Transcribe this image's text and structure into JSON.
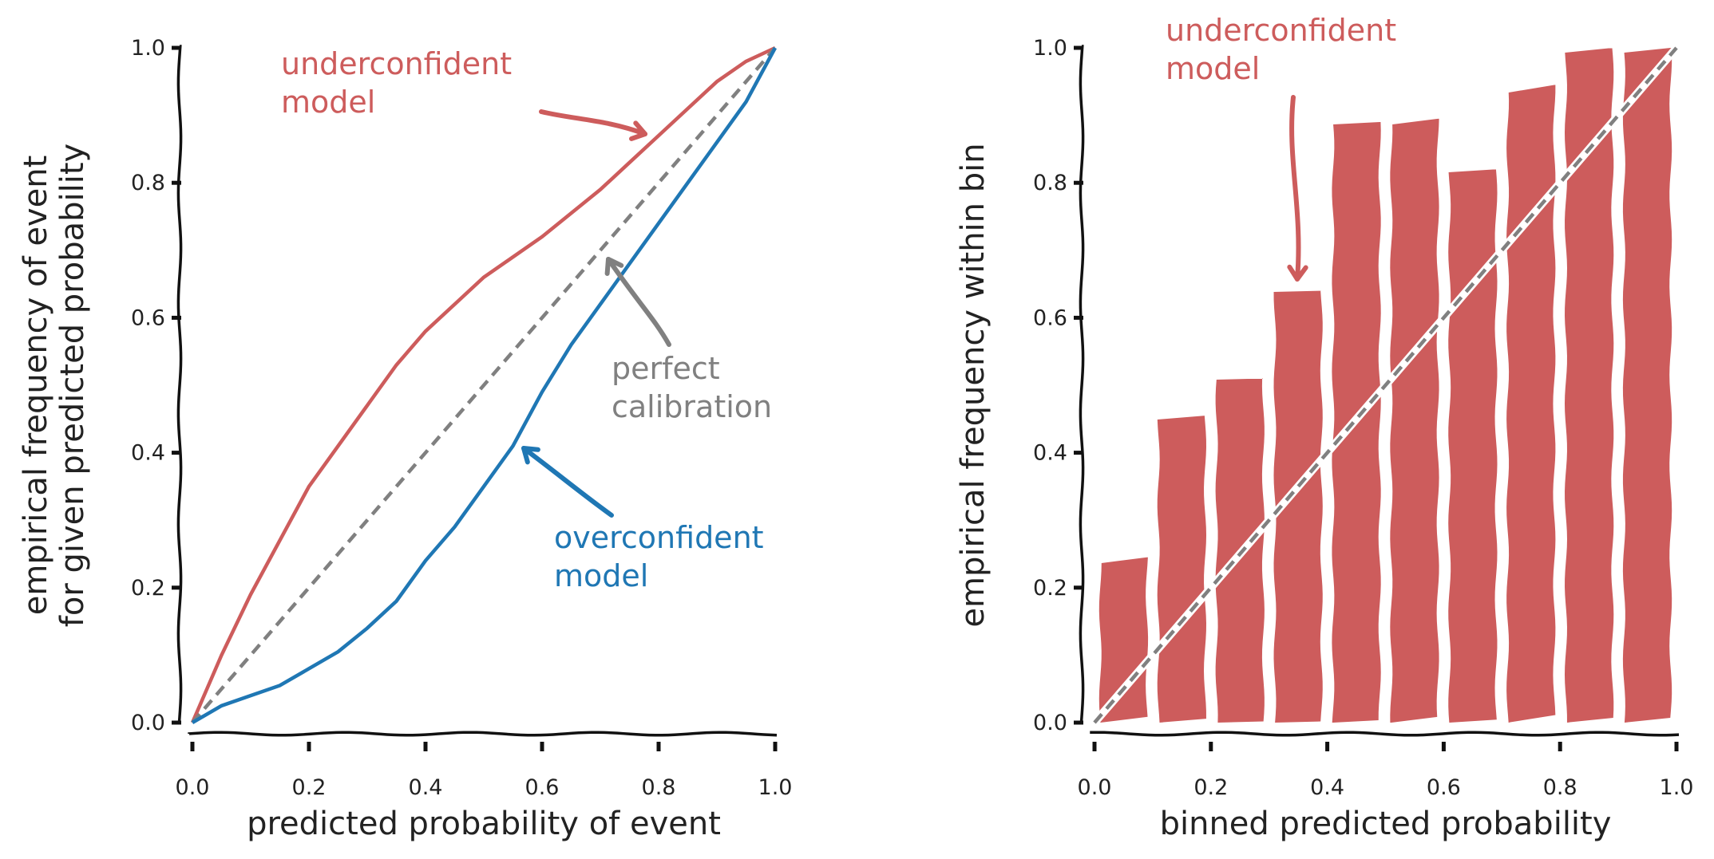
{
  "chart_data": [
    {
      "type": "line",
      "xlabel": "predicted probability of event",
      "ylabel": [
        "empirical frequency of event",
        "for given predicted probability"
      ],
      "xlim": [
        0,
        1
      ],
      "ylim": [
        0,
        1
      ],
      "xticks": [
        "0.0",
        "0.2",
        "0.4",
        "0.6",
        "0.8",
        "1.0"
      ],
      "yticks": [
        "0.0",
        "0.2",
        "0.4",
        "0.6",
        "0.8",
        "1.0"
      ],
      "grid": false,
      "series": [
        {
          "name": "underconfident model",
          "color": "#cd5c5c",
          "x": [
            0,
            0.05,
            0.1,
            0.15,
            0.2,
            0.25,
            0.3,
            0.35,
            0.4,
            0.45,
            0.5,
            0.55,
            0.6,
            0.65,
            0.7,
            0.75,
            0.8,
            0.85,
            0.9,
            0.95,
            1.0
          ],
          "y": [
            0,
            0.1,
            0.19,
            0.27,
            0.35,
            0.41,
            0.47,
            0.53,
            0.58,
            0.62,
            0.66,
            0.69,
            0.72,
            0.755,
            0.79,
            0.83,
            0.87,
            0.91,
            0.95,
            0.98,
            1.0
          ]
        },
        {
          "name": "perfect calibration",
          "color": "#808080",
          "dashed": true,
          "x": [
            0,
            1
          ],
          "y": [
            0,
            1
          ]
        },
        {
          "name": "overconfident model",
          "color": "#1f77b4",
          "x": [
            0,
            0.05,
            0.1,
            0.15,
            0.2,
            0.25,
            0.3,
            0.35,
            0.4,
            0.45,
            0.5,
            0.55,
            0.6,
            0.65,
            0.7,
            0.75,
            0.8,
            0.85,
            0.9,
            0.95,
            1.0
          ],
          "y": [
            0,
            0.025,
            0.04,
            0.055,
            0.08,
            0.105,
            0.14,
            0.18,
            0.24,
            0.29,
            0.35,
            0.41,
            0.49,
            0.56,
            0.62,
            0.68,
            0.74,
            0.8,
            0.86,
            0.92,
            1.0
          ]
        }
      ],
      "annotations": [
        {
          "lines": [
            "underconfident",
            "model"
          ],
          "color": "#cd5c5c"
        },
        {
          "lines": [
            "perfect",
            "calibration"
          ],
          "color": "#808080"
        },
        {
          "lines": [
            "overconfident",
            "model"
          ],
          "color": "#1f77b4"
        }
      ]
    },
    {
      "type": "bar",
      "xlabel": "binned predicted probability",
      "ylabel": [
        "empirical frequency within bin"
      ],
      "xlim": [
        0,
        1
      ],
      "ylim": [
        0,
        1
      ],
      "xticks": [
        "0.0",
        "0.2",
        "0.4",
        "0.6",
        "0.8",
        "1.0"
      ],
      "yticks": [
        "0.0",
        "0.2",
        "0.4",
        "0.6",
        "0.8",
        "1.0"
      ],
      "grid": false,
      "bar_color": "#cd5c5c",
      "bins": [
        0.05,
        0.15,
        0.25,
        0.35,
        0.45,
        0.55,
        0.65,
        0.75,
        0.85,
        0.95
      ],
      "values": [
        0.245,
        0.455,
        0.51,
        0.64,
        0.89,
        0.895,
        0.82,
        0.945,
        1.0,
        1.0
      ],
      "diagonal_color": "#808080",
      "annotations": [
        {
          "lines": [
            "underconfident",
            "model"
          ],
          "color": "#cd5c5c"
        }
      ]
    }
  ]
}
